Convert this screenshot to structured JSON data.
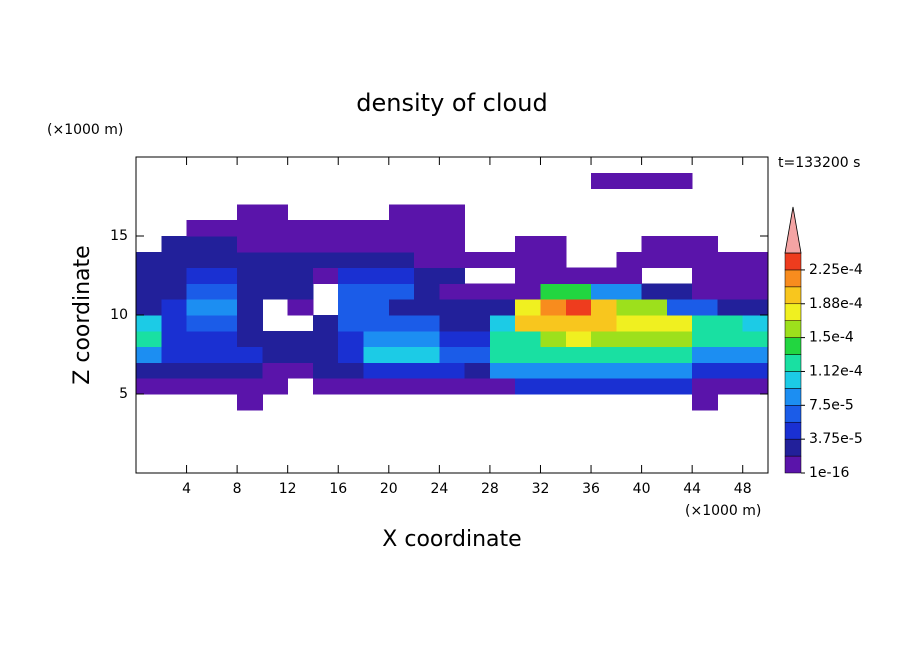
{
  "chart_data": {
    "type": "contour",
    "title": "density of cloud",
    "x_label": "X coordinate",
    "y_label": "Z coordinate",
    "x_unit": "(×1000 m)",
    "y_unit": "(×1000 m)",
    "annotation": "t=133200 s",
    "xlim": [
      0,
      50
    ],
    "ylim": [
      0,
      20
    ],
    "xticks": [
      4,
      8,
      12,
      16,
      20,
      24,
      28,
      32,
      36,
      40,
      44,
      48
    ],
    "yticks": [
      5,
      10,
      15
    ],
    "x": [
      0,
      2,
      4,
      6,
      8,
      10,
      12,
      14,
      16,
      18,
      20,
      22,
      24,
      26,
      28,
      30,
      32,
      34,
      36,
      38,
      40,
      42,
      44,
      46,
      48,
      50
    ],
    "z": [
      4,
      5,
      6,
      7,
      8,
      9,
      10,
      11,
      12,
      13,
      14,
      15,
      16,
      17,
      18,
      19
    ],
    "values": [
      [
        null,
        null,
        null,
        null,
        1e-05,
        null,
        null,
        null,
        null,
        null,
        null,
        null,
        null,
        null,
        null,
        null,
        null,
        null,
        null,
        null,
        null,
        null,
        1e-05,
        null,
        null
      ],
      [
        1e-05,
        1e-05,
        1e-05,
        1e-05,
        1e-05,
        1e-05,
        null,
        1e-05,
        1e-05,
        1e-05,
        1e-05,
        1e-05,
        1e-05,
        1e-05,
        1e-05,
        4e-05,
        4e-05,
        4e-05,
        4e-05,
        4e-05,
        4e-05,
        4e-05,
        1e-05,
        1e-05,
        1e-05
      ],
      [
        3e-05,
        3e-05,
        3e-05,
        3e-05,
        3e-05,
        1e-05,
        1e-05,
        2e-05,
        2e-05,
        5e-05,
        5e-05,
        5e-05,
        5e-05,
        3e-05,
        8e-05,
        8e-05,
        8e-05,
        9e-05,
        9e-05,
        9e-05,
        8e-05,
        8e-05,
        5e-05,
        5e-05,
        5e-05
      ],
      [
        9e-05,
        4e-05,
        4e-05,
        4e-05,
        4e-05,
        2e-05,
        2e-05,
        2e-05,
        4e-05,
        0.00011,
        0.00011,
        0.00011,
        6e-05,
        6e-05,
        0.00012,
        0.00012,
        0.00013,
        0.00013,
        0.00013,
        0.00013,
        0.00013,
        0.00013,
        9e-05,
        9e-05,
        9e-05
      ],
      [
        0.00012,
        5e-05,
        5e-05,
        5e-05,
        3e-05,
        3e-05,
        2e-05,
        2e-05,
        5e-05,
        9e-05,
        9e-05,
        9e-05,
        5e-05,
        5e-05,
        0.00013,
        0.00013,
        0.00016,
        0.00017,
        0.00016,
        0.00016,
        0.00016,
        0.00016,
        0.00012,
        0.00012,
        0.00012
      ],
      [
        0.0001,
        5e-05,
        7e-05,
        7e-05,
        3e-05,
        null,
        null,
        2e-05,
        6e-05,
        6e-05,
        7e-05,
        7e-05,
        3e-05,
        3e-05,
        0.00011,
        0.00019,
        0.00019,
        0.0002,
        0.00019,
        0.00018,
        0.00018,
        0.00018,
        0.00013,
        0.00013,
        0.0001
      ],
      [
        3e-05,
        4e-05,
        8e-05,
        8e-05,
        2e-05,
        null,
        1e-05,
        null,
        6e-05,
        6e-05,
        3e-05,
        3e-05,
        2e-05,
        2e-05,
        3e-05,
        0.00017,
        0.00021,
        0.00023,
        0.00019,
        0.00016,
        0.00016,
        6e-05,
        6e-05,
        3e-05,
        3e-05
      ],
      [
        2e-05,
        2e-05,
        7e-05,
        7e-05,
        2e-05,
        2e-05,
        2e-05,
        null,
        7e-05,
        7e-05,
        7e-05,
        3e-05,
        1e-05,
        1e-05,
        1e-05,
        1e-05,
        0.00014,
        0.00014,
        8e-05,
        8e-05,
        2e-05,
        2e-05,
        1e-05,
        1e-05,
        1e-05
      ],
      [
        2e-05,
        2e-05,
        4e-05,
        4e-05,
        2e-05,
        2e-05,
        2e-05,
        1e-05,
        4e-05,
        4e-05,
        4e-05,
        2e-05,
        2e-05,
        null,
        null,
        1e-05,
        1e-05,
        1e-05,
        1e-05,
        1e-05,
        null,
        null,
        1e-05,
        1e-05,
        1e-05
      ],
      [
        2e-05,
        2e-05,
        3e-05,
        2e-05,
        2e-05,
        2e-05,
        2e-05,
        2e-05,
        2e-05,
        2e-05,
        2e-05,
        1e-05,
        1e-05,
        1e-05,
        1e-05,
        1e-05,
        1e-05,
        null,
        null,
        1e-05,
        1e-05,
        1e-05,
        1e-05,
        1e-05,
        1e-05
      ],
      [
        null,
        2e-05,
        2e-05,
        2e-05,
        1e-05,
        1e-05,
        1e-05,
        1e-05,
        1e-05,
        1e-05,
        1e-05,
        1e-05,
        1e-05,
        null,
        null,
        1e-05,
        1e-05,
        null,
        null,
        null,
        1e-05,
        1e-05,
        1e-05,
        null,
        null
      ],
      [
        null,
        null,
        1e-05,
        1e-05,
        1e-05,
        1e-05,
        1e-05,
        1e-05,
        1e-05,
        1e-05,
        1e-05,
        1e-05,
        1e-05,
        null,
        null,
        null,
        null,
        null,
        null,
        null,
        null,
        null,
        null,
        null,
        null
      ],
      [
        null,
        null,
        null,
        null,
        1e-05,
        1e-05,
        null,
        null,
        null,
        null,
        1e-05,
        1e-05,
        1e-05,
        null,
        null,
        null,
        null,
        null,
        null,
        null,
        null,
        null,
        null,
        null,
        null
      ],
      [
        null,
        null,
        null,
        null,
        null,
        null,
        null,
        null,
        null,
        null,
        null,
        null,
        null,
        null,
        null,
        null,
        null,
        null,
        null,
        null,
        null,
        null,
        null,
        null,
        null
      ],
      [
        null,
        null,
        null,
        null,
        null,
        null,
        null,
        null,
        null,
        null,
        null,
        null,
        null,
        null,
        null,
        null,
        null,
        null,
        1e-05,
        1e-05,
        1e-05,
        1e-05,
        null,
        null,
        null
      ]
    ],
    "levels": [
      1e-16,
      1.875e-05,
      3.75e-05,
      5.625e-05,
      7.5e-05,
      9.375e-05,
      0.0001125,
      0.00013125,
      0.00015,
      0.00016875,
      0.0001875,
      0.00020625,
      0.000225,
      0.00024375
    ],
    "colors": [
      "#5a14aa",
      "#22209a",
      "#1a30d2",
      "#1b5ce8",
      "#1c8ef2",
      "#1ccbe6",
      "#19e0a2",
      "#22d640",
      "#9de01c",
      "#f0f020",
      "#f8c61e",
      "#f88c1e",
      "#ee3c1e"
    ],
    "overflow_color": "#f4a4a4",
    "colorbar_ticks": [
      {
        "value": 1e-16,
        "label": "1e-16"
      },
      {
        "value": 3.75e-05,
        "label": "3.75e-5"
      },
      {
        "value": 7.5e-05,
        "label": "7.5e-5"
      },
      {
        "value": 0.0001125,
        "label": "1.12e-4"
      },
      {
        "value": 0.00015,
        "label": "1.5e-4"
      },
      {
        "value": 0.0001875,
        "label": "1.88e-4"
      },
      {
        "value": 0.000225,
        "label": "2.25e-4"
      }
    ]
  }
}
